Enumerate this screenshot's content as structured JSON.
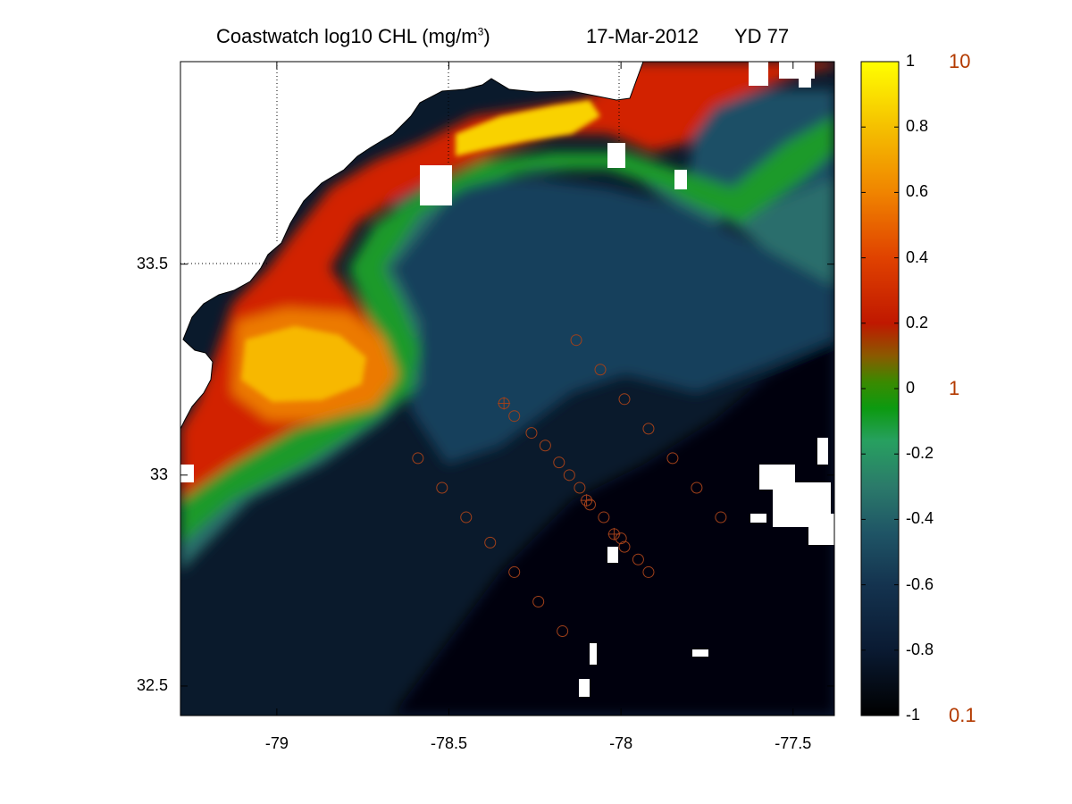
{
  "title": {
    "main_prefix": "Coastwatch  log10  CHL (mg/m",
    "main_sup": "3",
    "main_suffix": ")",
    "date": "17-Mar-2012",
    "yearday": "YD 77"
  },
  "map": {
    "x_ticks": [
      "-79",
      "-78.5",
      "-78",
      "-77.5"
    ],
    "x_tick_values": [
      -79,
      -78.5,
      -78,
      -77.5
    ],
    "y_ticks": [
      "32.5",
      "33",
      "33.5"
    ],
    "y_tick_values": [
      32.5,
      33,
      33.5
    ],
    "lon_range": [
      -79.28,
      -77.38
    ],
    "lat_range": [
      32.43,
      33.98
    ],
    "grid": "dotted, partial"
  },
  "colorbar": {
    "tick_labels": [
      "1",
      "0.8",
      "0.6",
      "0.4",
      "0.2",
      "0",
      "-0.2",
      "-0.4",
      "-0.6",
      "-0.8",
      "-1"
    ],
    "tick_values": [
      1,
      0.8,
      0.6,
      0.4,
      0.2,
      0,
      -0.2,
      -0.4,
      -0.6,
      -0.8,
      -1
    ],
    "linear_labels": [
      "10",
      "1",
      "0.1"
    ],
    "linear_values": [
      1,
      0,
      -1
    ],
    "range": [
      -1,
      1
    ],
    "colormap": [
      "#000000",
      "#0a1e3c",
      "#1d4f6a",
      "#2d7a6a",
      "#3aa07a",
      "#1e9a1e",
      "#008c00",
      "#8a6a00",
      "#c01a00",
      "#e05000",
      "#f09000",
      "#f8c800",
      "#ffff00"
    ]
  },
  "chart_data": {
    "type": "heatmap",
    "title": "Coastwatch  log10  CHL (mg/m3)",
    "xlabel": "",
    "ylabel": "",
    "xlim": [
      -79.28,
      -77.38
    ],
    "ylim": [
      32.43,
      33.98
    ],
    "colorbar_range": [
      -1,
      1
    ],
    "colors": {
      "high": "#ffff00",
      "zero": "#008c00",
      "low": "#000000",
      "land": "#ffffff",
      "coastline": "#000000",
      "station_marker": "#a0401a"
    },
    "stations": [
      {
        "lon": -78.13,
        "lat": 33.32,
        "marker": "circle"
      },
      {
        "lon": -78.06,
        "lat": 33.25,
        "marker": "circle"
      },
      {
        "lon": -78.34,
        "lat": 33.17,
        "marker": "star"
      },
      {
        "lon": -78.31,
        "lat": 33.14,
        "marker": "circle"
      },
      {
        "lon": -78.26,
        "lat": 33.1,
        "marker": "circle"
      },
      {
        "lon": -78.22,
        "lat": 33.07,
        "marker": "circle"
      },
      {
        "lon": -78.18,
        "lat": 33.03,
        "marker": "circle"
      },
      {
        "lon": -78.15,
        "lat": 33.0,
        "marker": "circle"
      },
      {
        "lon": -78.12,
        "lat": 32.97,
        "marker": "circle"
      },
      {
        "lon": -78.1,
        "lat": 32.94,
        "marker": "star"
      },
      {
        "lon": -78.09,
        "lat": 32.93,
        "marker": "circle"
      },
      {
        "lon": -78.05,
        "lat": 32.9,
        "marker": "circle"
      },
      {
        "lon": -78.02,
        "lat": 32.86,
        "marker": "star"
      },
      {
        "lon": -78.0,
        "lat": 32.85,
        "marker": "circle"
      },
      {
        "lon": -77.99,
        "lat": 32.83,
        "marker": "circle"
      },
      {
        "lon": -77.95,
        "lat": 32.8,
        "marker": "circle"
      },
      {
        "lon": -77.92,
        "lat": 32.77,
        "marker": "circle"
      },
      {
        "lon": -77.99,
        "lat": 33.18,
        "marker": "circle"
      },
      {
        "lon": -77.92,
        "lat": 33.11,
        "marker": "circle"
      },
      {
        "lon": -77.85,
        "lat": 33.04,
        "marker": "circle"
      },
      {
        "lon": -77.78,
        "lat": 32.97,
        "marker": "circle"
      },
      {
        "lon": -77.71,
        "lat": 32.9,
        "marker": "circle"
      },
      {
        "lon": -78.59,
        "lat": 33.04,
        "marker": "circle"
      },
      {
        "lon": -78.52,
        "lat": 32.97,
        "marker": "circle"
      },
      {
        "lon": -78.45,
        "lat": 32.9,
        "marker": "circle"
      },
      {
        "lon": -78.38,
        "lat": 32.84,
        "marker": "circle"
      },
      {
        "lon": -78.31,
        "lat": 32.77,
        "marker": "circle"
      },
      {
        "lon": -78.24,
        "lat": 32.7,
        "marker": "circle"
      },
      {
        "lon": -78.17,
        "lat": 32.63,
        "marker": "circle"
      }
    ]
  }
}
